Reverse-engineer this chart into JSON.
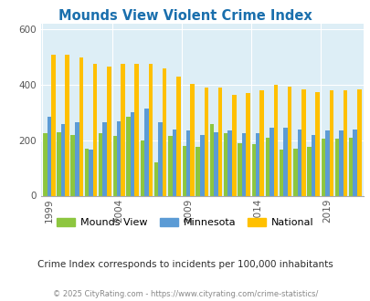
{
  "title": "Mounds View Violent Crime Index",
  "years": [
    1999,
    2000,
    2001,
    2002,
    2003,
    2004,
    2005,
    2006,
    2007,
    2008,
    2009,
    2010,
    2011,
    2012,
    2013,
    2014,
    2015,
    2016,
    2017,
    2018,
    2019,
    2020,
    2021
  ],
  "mounds_view": [
    225,
    230,
    220,
    170,
    225,
    215,
    285,
    200,
    120,
    215,
    180,
    175,
    260,
    225,
    190,
    185,
    210,
    165,
    170,
    175,
    205,
    205,
    210
  ],
  "minnesota": [
    285,
    260,
    265,
    165,
    265,
    270,
    300,
    315,
    265,
    240,
    235,
    220,
    230,
    235,
    225,
    225,
    245,
    245,
    240,
    220,
    235,
    235,
    240
  ],
  "national": [
    510,
    510,
    500,
    475,
    465,
    475,
    475,
    475,
    460,
    430,
    405,
    390,
    390,
    365,
    370,
    380,
    400,
    395,
    385,
    375,
    380,
    380,
    385
  ],
  "ylim": [
    0,
    620
  ],
  "yticks": [
    0,
    200,
    400,
    600
  ],
  "color_mv": "#8dc63f",
  "color_mn": "#5b9bd5",
  "color_nat": "#ffc000",
  "bg_color": "#ddeef6",
  "subtitle": "Crime Index corresponds to incidents per 100,000 inhabitants",
  "footer": "© 2025 CityRating.com - https://www.cityrating.com/crime-statistics/",
  "grid_color": "#ffffff",
  "xlabel_ticks": [
    1999,
    2004,
    2009,
    2014,
    2019
  ],
  "title_color": "#1a6fad",
  "subtitle_color": "#2c2c2c",
  "footer_color": "#888888"
}
